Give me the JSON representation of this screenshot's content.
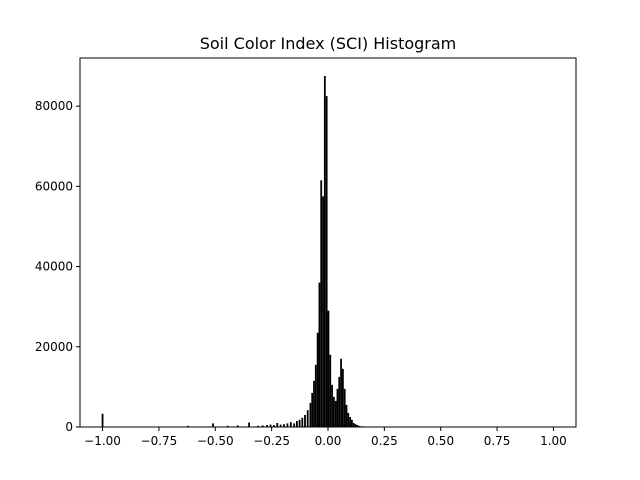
{
  "chart_data": {
    "type": "bar",
    "title": "Soil Color Index (SCI) Histogram",
    "xlabel": "",
    "ylabel": "",
    "xlim": [
      -1.1,
      1.1
    ],
    "ylim": [
      0,
      92000
    ],
    "grid": false,
    "bar_color": "#000000",
    "x_ticks": [
      {
        "value": -1.0,
        "label": "−1.00"
      },
      {
        "value": -0.75,
        "label": "−0.75"
      },
      {
        "value": -0.5,
        "label": "−0.50"
      },
      {
        "value": -0.25,
        "label": "−0.25"
      },
      {
        "value": 0.0,
        "label": "0.00"
      },
      {
        "value": 0.25,
        "label": "0.25"
      },
      {
        "value": 0.5,
        "label": "0.50"
      },
      {
        "value": 0.75,
        "label": "0.75"
      },
      {
        "value": 1.0,
        "label": "1.00"
      }
    ],
    "y_ticks": [
      {
        "value": 0,
        "label": "0"
      },
      {
        "value": 20000,
        "label": "20000"
      },
      {
        "value": 40000,
        "label": "40000"
      },
      {
        "value": 60000,
        "label": "60000"
      },
      {
        "value": 80000,
        "label": "80000"
      }
    ],
    "bin_width": 0.008,
    "bins": [
      {
        "x": -1.0,
        "count": 3300
      },
      {
        "x": -0.62,
        "count": 300
      },
      {
        "x": -0.51,
        "count": 900
      },
      {
        "x": -0.445,
        "count": 300
      },
      {
        "x": -0.4,
        "count": 400
      },
      {
        "x": -0.35,
        "count": 1100
      },
      {
        "x": -0.31,
        "count": 300
      },
      {
        "x": -0.29,
        "count": 400
      },
      {
        "x": -0.27,
        "count": 500
      },
      {
        "x": -0.255,
        "count": 600
      },
      {
        "x": -0.24,
        "count": 500
      },
      {
        "x": -0.225,
        "count": 1000
      },
      {
        "x": -0.21,
        "count": 600
      },
      {
        "x": -0.195,
        "count": 700
      },
      {
        "x": -0.18,
        "count": 900
      },
      {
        "x": -0.165,
        "count": 1200
      },
      {
        "x": -0.15,
        "count": 900
      },
      {
        "x": -0.138,
        "count": 1500
      },
      {
        "x": -0.126,
        "count": 1800
      },
      {
        "x": -0.114,
        "count": 2300
      },
      {
        "x": -0.102,
        "count": 3000
      },
      {
        "x": -0.09,
        "count": 4200
      },
      {
        "x": -0.078,
        "count": 6000
      },
      {
        "x": -0.07,
        "count": 8500
      },
      {
        "x": -0.062,
        "count": 11500
      },
      {
        "x": -0.054,
        "count": 15500
      },
      {
        "x": -0.046,
        "count": 23500
      },
      {
        "x": -0.038,
        "count": 36000
      },
      {
        "x": -0.03,
        "count": 61500
      },
      {
        "x": -0.022,
        "count": 57500
      },
      {
        "x": -0.014,
        "count": 87500
      },
      {
        "x": -0.006,
        "count": 82500
      },
      {
        "x": 0.002,
        "count": 29000
      },
      {
        "x": 0.01,
        "count": 18000
      },
      {
        "x": 0.018,
        "count": 10500
      },
      {
        "x": 0.026,
        "count": 7500
      },
      {
        "x": 0.034,
        "count": 6500
      },
      {
        "x": 0.042,
        "count": 9500
      },
      {
        "x": 0.05,
        "count": 12500
      },
      {
        "x": 0.058,
        "count": 17000
      },
      {
        "x": 0.066,
        "count": 14500
      },
      {
        "x": 0.074,
        "count": 9500
      },
      {
        "x": 0.082,
        "count": 5500
      },
      {
        "x": 0.09,
        "count": 3500
      },
      {
        "x": 0.098,
        "count": 2500
      },
      {
        "x": 0.106,
        "count": 1800
      },
      {
        "x": 0.114,
        "count": 1000
      },
      {
        "x": 0.122,
        "count": 700
      },
      {
        "x": 0.13,
        "count": 500
      },
      {
        "x": 0.14,
        "count": 300
      },
      {
        "x": 0.155,
        "count": 200
      },
      {
        "x": 0.175,
        "count": 100
      }
    ]
  }
}
